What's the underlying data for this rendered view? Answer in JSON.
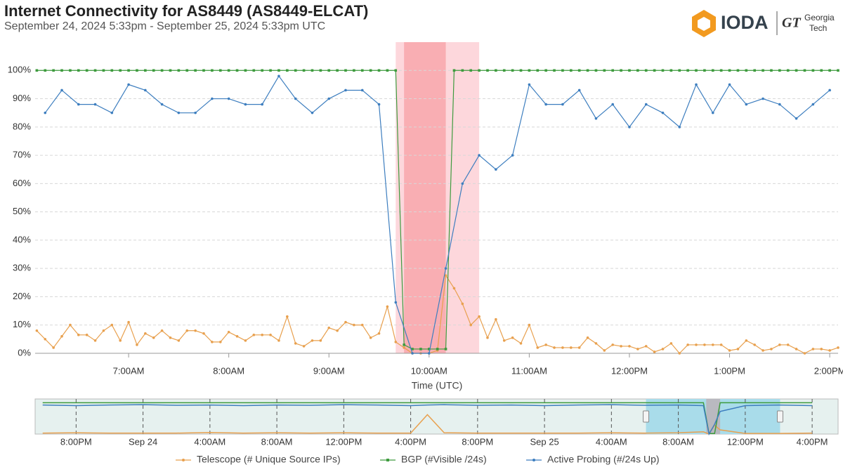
{
  "header": {
    "title": "Internet Connectivity for AS8449 (AS8449-ELCAT)",
    "subtitle": "September 24, 2024 5:33pm - September 25, 2024 5:33pm UTC",
    "logo": {
      "name": "IODA",
      "partner_mark": "GT",
      "partner_line1": "Georgia",
      "partner_line2": "Tech"
    }
  },
  "chart_data": [
    {
      "type": "line",
      "x_label": "Time (UTC)",
      "xlim": [
        "06:04",
        "14:05"
      ],
      "xticks": [
        {
          "value": "07:00",
          "label": "7:00AM"
        },
        {
          "value": "08:00",
          "label": "8:00AM"
        },
        {
          "value": "09:00",
          "label": "9:00AM"
        },
        {
          "value": "10:00",
          "label": "10:00AM"
        },
        {
          "value": "11:00",
          "label": "11:00AM"
        },
        {
          "value": "12:00",
          "label": "12:00PM"
        },
        {
          "value": "13:00",
          "label": "1:00PM"
        },
        {
          "value": "14:00",
          "label": "2:00PM"
        }
      ],
      "ylim": [
        0,
        110
      ],
      "yticks": [
        {
          "value": 0,
          "label": "0%"
        },
        {
          "value": 10,
          "label": "10%"
        },
        {
          "value": 20,
          "label": "20%"
        },
        {
          "value": 30,
          "label": "30%"
        },
        {
          "value": 40,
          "label": "40%"
        },
        {
          "value": 50,
          "label": "50%"
        },
        {
          "value": 60,
          "label": "60%"
        },
        {
          "value": 70,
          "label": "70%"
        },
        {
          "value": 80,
          "label": "80%"
        },
        {
          "value": 90,
          "label": "90%"
        },
        {
          "value": 100,
          "label": "100%"
        }
      ],
      "grid": true,
      "outages": [
        {
          "color": "#fdd7dc",
          "span": [
            "09:40",
            "10:30"
          ]
        },
        {
          "color": "#f9aeb3",
          "span": [
            "09:45",
            "10:10"
          ]
        }
      ],
      "x": [
        "06:05",
        "06:10",
        "06:15",
        "06:20",
        "06:25",
        "06:30",
        "06:35",
        "06:40",
        "06:45",
        "06:50",
        "06:55",
        "07:00",
        "07:05",
        "07:10",
        "07:15",
        "07:20",
        "07:25",
        "07:30",
        "07:35",
        "07:40",
        "07:45",
        "07:50",
        "07:55",
        "08:00",
        "08:05",
        "08:10",
        "08:15",
        "08:20",
        "08:25",
        "08:30",
        "08:35",
        "08:40",
        "08:45",
        "08:50",
        "08:55",
        "09:00",
        "09:05",
        "09:10",
        "09:15",
        "09:20",
        "09:25",
        "09:30",
        "09:35",
        "09:40",
        "09:45",
        "09:50",
        "09:55",
        "10:00",
        "10:05",
        "10:10",
        "10:15",
        "10:20",
        "10:25",
        "10:30",
        "10:35",
        "10:40",
        "10:45",
        "10:50",
        "10:55",
        "11:00",
        "11:05",
        "11:10",
        "11:15",
        "11:20",
        "11:25",
        "11:30",
        "11:35",
        "11:40",
        "11:45",
        "11:50",
        "11:55",
        "12:00",
        "12:05",
        "12:10",
        "12:15",
        "12:20",
        "12:25",
        "12:30",
        "12:35",
        "12:40",
        "12:45",
        "12:50",
        "12:55",
        "13:00",
        "13:05",
        "13:10",
        "13:15",
        "13:20",
        "13:25",
        "13:30",
        "13:35",
        "13:40",
        "13:45",
        "13:50",
        "13:55",
        "14:00",
        "14:05"
      ],
      "series": [
        {
          "name": "Telescope (# Unique Source IPs)",
          "color": "#e8a04e",
          "marker": "circle",
          "values": [
            8,
            5,
            2,
            6,
            10,
            6.5,
            6.5,
            4.5,
            8,
            10,
            4.5,
            11,
            3,
            7,
            5.5,
            8,
            5.5,
            4.5,
            8,
            8,
            7,
            4,
            4,
            7.5,
            6,
            4.5,
            6.5,
            6.5,
            6.5,
            4.5,
            13,
            3.5,
            2.5,
            4.5,
            4.5,
            9,
            8,
            11,
            10,
            10,
            5.5,
            7,
            16.5,
            4,
            2,
            0,
            0,
            0,
            1,
            27.5,
            23,
            17.5,
            10,
            13,
            5.5,
            12,
            4.5,
            5.5,
            3.5,
            10,
            2,
            3,
            2,
            2,
            2,
            2,
            5.5,
            3.5,
            1,
            3,
            2.5,
            2.5,
            1.5,
            2.5,
            0.5,
            1.5,
            3.5,
            0,
            3,
            3,
            3,
            3,
            3,
            1,
            1.5,
            4.5,
            3,
            1,
            1.5,
            3,
            3,
            1.5,
            0,
            1.5,
            1.5,
            1,
            2
          ]
        },
        {
          "name": "BGP (#Visible /24s)",
          "color": "#3e9b3e",
          "marker": "square",
          "values": [
            100,
            100,
            100,
            100,
            100,
            100,
            100,
            100,
            100,
            100,
            100,
            100,
            100,
            100,
            100,
            100,
            100,
            100,
            100,
            100,
            100,
            100,
            100,
            100,
            100,
            100,
            100,
            100,
            100,
            100,
            100,
            100,
            100,
            100,
            100,
            100,
            100,
            100,
            100,
            100,
            100,
            100,
            100,
            100,
            3,
            1.5,
            1.5,
            1.5,
            1.5,
            1.5,
            100,
            100,
            100,
            100,
            100,
            100,
            100,
            100,
            100,
            100,
            100,
            100,
            100,
            100,
            100,
            100,
            100,
            100,
            100,
            100,
            100,
            100,
            100,
            100,
            100,
            100,
            100,
            100,
            100,
            100,
            100,
            100,
            100,
            100,
            100,
            100,
            100,
            100,
            100,
            100,
            100,
            100,
            100,
            100,
            100,
            100,
            100
          ]
        },
        {
          "name": "Active Probing (#/24s Up)",
          "color": "#3d7ebf",
          "marker": "circle",
          "x": [
            "06:10",
            "06:20",
            "06:30",
            "06:40",
            "06:50",
            "07:00",
            "07:10",
            "07:20",
            "07:30",
            "07:40",
            "07:50",
            "08:00",
            "08:10",
            "08:20",
            "08:30",
            "08:40",
            "08:50",
            "09:00",
            "09:10",
            "09:20",
            "09:30",
            "09:40",
            "09:50",
            "10:00",
            "10:10",
            "10:20",
            "10:30",
            "10:40",
            "10:50",
            "11:00",
            "11:10",
            "11:20",
            "11:30",
            "11:40",
            "11:50",
            "12:00",
            "12:10",
            "12:20",
            "12:30",
            "12:40",
            "12:50",
            "13:00",
            "13:10",
            "13:20",
            "13:30",
            "13:40",
            "13:50",
            "14:00"
          ],
          "values": [
            85,
            93,
            88,
            88,
            85,
            95,
            93,
            88,
            85,
            85,
            90,
            90,
            88,
            88,
            98,
            90,
            85,
            90,
            93,
            93,
            88,
            18,
            0,
            0,
            30,
            60,
            70,
            65,
            70,
            95,
            88,
            88,
            93,
            83,
            88,
            80,
            88,
            85,
            80,
            95,
            85,
            95,
            88,
            90,
            88,
            83,
            88,
            93
          ]
        }
      ]
    },
    {
      "type": "line",
      "xlim": [
        "2024-09-23T17:33",
        "2024-09-25T17:33"
      ],
      "xticks": [
        {
          "value": "2024-09-23T20:00",
          "label": "8:00PM"
        },
        {
          "value": "2024-09-24T00:00",
          "label": "Sep 24"
        },
        {
          "value": "2024-09-24T04:00",
          "label": "4:00AM"
        },
        {
          "value": "2024-09-24T08:00",
          "label": "8:00AM"
        },
        {
          "value": "2024-09-24T12:00",
          "label": "12:00PM"
        },
        {
          "value": "2024-09-24T16:00",
          "label": "4:00PM"
        },
        {
          "value": "2024-09-24T20:00",
          "label": "8:00PM"
        },
        {
          "value": "2024-09-25T00:00",
          "label": "Sep 25"
        },
        {
          "value": "2024-09-25T04:00",
          "label": "4:00AM"
        },
        {
          "value": "2024-09-25T08:00",
          "label": "8:00AM"
        },
        {
          "value": "2024-09-25T12:00",
          "label": "12:00PM"
        },
        {
          "value": "2024-09-25T16:00",
          "label": "4:00PM"
        }
      ],
      "ylim": [
        0,
        100
      ],
      "selection": [
        "2024-09-25T06:04",
        "2024-09-25T14:05"
      ],
      "outages": [
        {
          "color": "#b9b9c0",
          "span": [
            "2024-09-25T09:40",
            "2024-09-25T10:30"
          ]
        }
      ],
      "x": [
        "2024-09-23T18:00",
        "2024-09-23T20:00",
        "2024-09-23T22:00",
        "2024-09-24T00:00",
        "2024-09-24T02:00",
        "2024-09-24T04:00",
        "2024-09-24T06:00",
        "2024-09-24T08:00",
        "2024-09-24T10:00",
        "2024-09-24T12:00",
        "2024-09-24T14:00",
        "2024-09-24T16:00",
        "2024-09-24T17:00",
        "2024-09-24T18:00",
        "2024-09-24T20:00",
        "2024-09-24T22:00",
        "2024-09-25T00:00",
        "2024-09-25T02:00",
        "2024-09-25T04:00",
        "2024-09-25T06:00",
        "2024-09-25T08:00",
        "2024-09-25T09:30",
        "2024-09-25T09:50",
        "2024-09-25T10:10",
        "2024-09-25T10:30",
        "2024-09-25T12:00",
        "2024-09-25T14:00",
        "2024-09-25T16:00"
      ],
      "series": [
        {
          "color": "#e8a04e",
          "values": [
            3,
            4,
            3,
            3,
            3,
            5,
            3,
            4,
            3,
            4,
            3,
            3,
            60,
            4,
            3,
            3,
            3,
            3,
            4,
            3,
            4,
            7,
            0,
            27.5,
            13,
            2,
            2,
            3
          ]
        },
        {
          "color": "#3e9b3e",
          "values": [
            97,
            97,
            97,
            97,
            97,
            97,
            97,
            97,
            97,
            97,
            97,
            97,
            97,
            97,
            97,
            97,
            97,
            97,
            97,
            97,
            97,
            97,
            1.5,
            1.5,
            97,
            97,
            97,
            97
          ]
        },
        {
          "color": "#3d7ebf",
          "values": [
            90,
            88,
            90,
            91,
            89,
            90,
            88,
            90,
            89,
            91,
            90,
            88,
            90,
            91,
            89,
            90,
            88,
            90,
            91,
            89,
            90,
            88,
            0,
            30,
            70,
            88,
            90,
            88
          ]
        }
      ]
    }
  ]
}
